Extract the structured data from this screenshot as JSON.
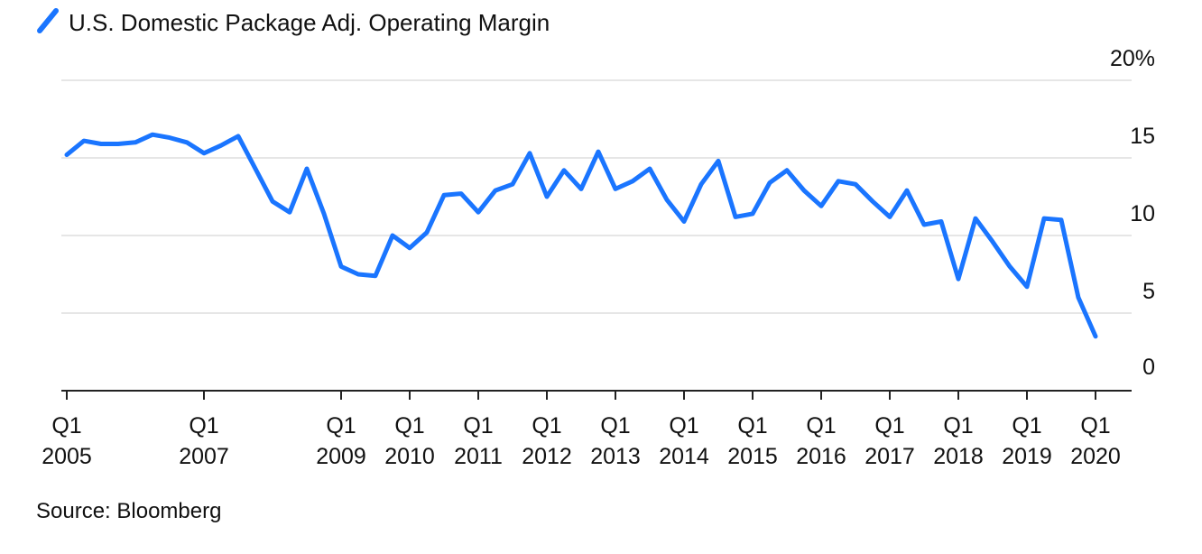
{
  "chart_data": {
    "type": "line",
    "title": "",
    "xlabel": "",
    "ylabel": "",
    "legend": {
      "position": "top-left",
      "label": "U.S. Domestic Package Adj. Operating Margin"
    },
    "ylim": [
      0,
      20
    ],
    "y_ticks": [
      {
        "value": 20,
        "label": "20%"
      },
      {
        "value": 15,
        "label": "15"
      },
      {
        "value": 10,
        "label": "10"
      },
      {
        "value": 5,
        "label": "5"
      },
      {
        "value": 0,
        "label": "0"
      }
    ],
    "grid": true,
    "x_ticks": [
      {
        "q": 0,
        "line1": "Q1",
        "line2": "2005"
      },
      {
        "q": 8,
        "line1": "Q1",
        "line2": "2007"
      },
      {
        "q": 16,
        "line1": "Q1",
        "line2": "2009"
      },
      {
        "q": 20,
        "line1": "Q1",
        "line2": "2010"
      },
      {
        "q": 24,
        "line1": "Q1",
        "line2": "2011"
      },
      {
        "q": 28,
        "line1": "Q1",
        "line2": "2012"
      },
      {
        "q": 32,
        "line1": "Q1",
        "line2": "2013"
      },
      {
        "q": 36,
        "line1": "Q1",
        "line2": "2014"
      },
      {
        "q": 40,
        "line1": "Q1",
        "line2": "2015"
      },
      {
        "q": 44,
        "line1": "Q1",
        "line2": "2016"
      },
      {
        "q": 48,
        "line1": "Q1",
        "line2": "2017"
      },
      {
        "q": 52,
        "line1": "Q1",
        "line2": "2018"
      },
      {
        "q": 56,
        "line1": "Q1",
        "line2": "2019"
      },
      {
        "q": 60,
        "line1": "Q1",
        "line2": "2020"
      }
    ],
    "series": [
      {
        "name": "U.S. Domestic Package Adj. Operating Margin",
        "color": "#1a75ff",
        "x": [
          "Q1 2005",
          "Q2 2005",
          "Q3 2005",
          "Q4 2005",
          "Q1 2006",
          "Q2 2006",
          "Q3 2006",
          "Q4 2006",
          "Q1 2007",
          "Q2 2007",
          "Q3 2007",
          "Q4 2007",
          "Q1 2008",
          "Q2 2008",
          "Q3 2008",
          "Q4 2008",
          "Q1 2009",
          "Q2 2009",
          "Q3 2009",
          "Q4 2009",
          "Q1 2010",
          "Q2 2010",
          "Q3 2010",
          "Q4 2010",
          "Q1 2011",
          "Q2 2011",
          "Q3 2011",
          "Q4 2011",
          "Q1 2012",
          "Q2 2012",
          "Q3 2012",
          "Q4 2012",
          "Q1 2013",
          "Q2 2013",
          "Q3 2013",
          "Q4 2013",
          "Q1 2014",
          "Q2 2014",
          "Q3 2014",
          "Q4 2014",
          "Q1 2015",
          "Q2 2015",
          "Q3 2015",
          "Q4 2015",
          "Q1 2016",
          "Q2 2016",
          "Q3 2016",
          "Q4 2016",
          "Q1 2017",
          "Q2 2017",
          "Q3 2017",
          "Q4 2017",
          "Q1 2018",
          "Q2 2018",
          "Q3 2018",
          "Q4 2018",
          "Q1 2019",
          "Q2 2019",
          "Q3 2019",
          "Q4 2019",
          "Q1 2020"
        ],
        "values": [
          15.2,
          16.1,
          15.9,
          15.9,
          16.0,
          16.5,
          16.3,
          16.0,
          15.3,
          15.8,
          16.4,
          14.3,
          12.2,
          11.5,
          14.3,
          11.4,
          8.0,
          7.5,
          7.4,
          10.0,
          9.2,
          10.2,
          12.6,
          12.7,
          11.5,
          12.9,
          13.3,
          15.3,
          12.5,
          14.2,
          13.0,
          15.4,
          13.0,
          13.5,
          14.3,
          12.3,
          10.9,
          13.3,
          14.8,
          11.2,
          11.4,
          13.4,
          14.2,
          12.9,
          11.9,
          13.5,
          13.3,
          12.2,
          11.2,
          12.9,
          10.7,
          10.9,
          7.2,
          11.1,
          9.6,
          8.0,
          6.7,
          11.1,
          11.0,
          6.0,
          3.5
        ]
      }
    ]
  },
  "source": "Source: Bloomberg"
}
